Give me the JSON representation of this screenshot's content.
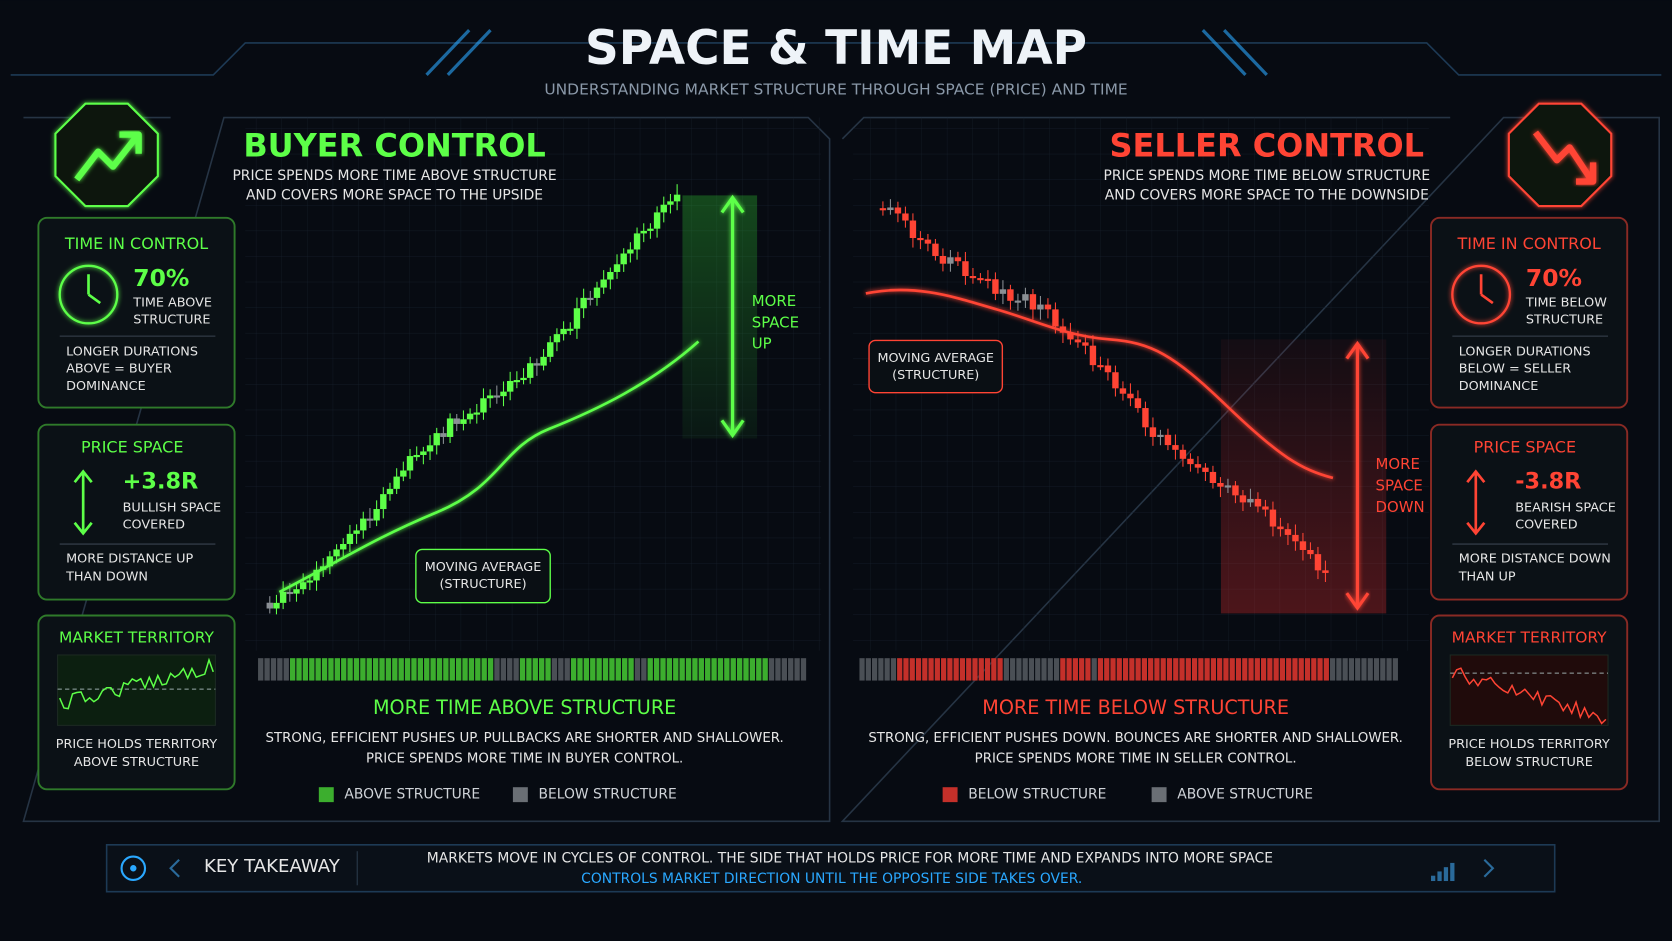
{
  "header": {
    "title": "SPACE & TIME MAP",
    "subtitle": "UNDERSTANDING MARKET STRUCTURE THROUGH SPACE (PRICE) AND TIME"
  },
  "buyer": {
    "title": "BUYER CONTROL",
    "description": [
      "PRICE SPENDS MORE TIME ABOVE STRUCTURE",
      "AND COVERS MORE SPACE TO THE UPSIDE"
    ],
    "time_card": {
      "label": "TIME IN CONTROL",
      "value": "70%",
      "detail": [
        "TIME ABOVE",
        "STRUCTURE"
      ],
      "note": [
        "LONGER DURATIONS",
        "ABOVE = BUYER",
        "DOMINANCE"
      ]
    },
    "price_card": {
      "label": "PRICE SPACE",
      "value": "+3.8R",
      "detail": [
        "BULLISH SPACE",
        "COVERED"
      ],
      "note": [
        "MORE DISTANCE UP",
        "THAN DOWN"
      ]
    },
    "territory_card": {
      "label": "MARKET TERRITORY",
      "note": [
        "PRICE HOLDS TERRITORY",
        "ABOVE STRUCTURE"
      ]
    },
    "callout": [
      "MOVING AVERAGE",
      "(STRUCTURE)"
    ],
    "space_label": [
      "MORE",
      "SPACE",
      "UP"
    ],
    "summary": {
      "heading": "MORE TIME ABOVE STRUCTURE",
      "text": [
        "STRONG, EFFICIENT PUSHES UP. PULLBACKS ARE SHORTER AND SHALLOWER.",
        "PRICE SPENDS MORE TIME IN BUYER CONTROL."
      ],
      "legend": [
        "ABOVE STRUCTURE",
        "BELOW STRUCTURE"
      ]
    }
  },
  "seller": {
    "title": "SELLER CONTROL",
    "description": [
      "PRICE SPENDS MORE TIME BELOW STRUCTURE",
      "AND COVERS MORE SPACE TO THE DOWNSIDE"
    ],
    "time_card": {
      "label": "TIME IN CONTROL",
      "value": "70%",
      "detail": [
        "TIME BELOW",
        "STRUCTURE"
      ],
      "note": [
        "LONGER DURATIONS",
        "BELOW = SELLER",
        "DOMINANCE"
      ]
    },
    "price_card": {
      "label": "PRICE SPACE",
      "value": "-3.8R",
      "detail": [
        "BEARISH SPACE",
        "COVERED"
      ],
      "note": [
        "MORE DISTANCE DOWN",
        "THAN UP"
      ]
    },
    "territory_card": {
      "label": "MARKET TERRITORY",
      "note": [
        "PRICE HOLDS TERRITORY",
        "BELOW STRUCTURE"
      ]
    },
    "callout": [
      "MOVING AVERAGE",
      "(STRUCTURE)"
    ],
    "space_label": [
      "MORE",
      "SPACE",
      "DOWN"
    ],
    "summary": {
      "heading": "MORE TIME BELOW STRUCTURE",
      "text": [
        "STRONG, EFFICIENT PUSHES DOWN. BOUNCES ARE SHORTER AND SHALLOWER.",
        "PRICE SPENDS MORE TIME IN SELLER CONTROL."
      ],
      "legend": [
        "BELOW STRUCTURE",
        "ABOVE STRUCTURE"
      ]
    }
  },
  "footer": {
    "label": "KEY TAKEAWAY",
    "text": [
      "MARKETS MOVE IN CYCLES OF CONTROL.  THE SIDE THAT HOLDS PRICE FOR MORE TIME AND EXPANDS INTO MORE SPACE",
      "CONTROLS MARKET DIRECTION UNTIL THE OPPOSITE SIDE TAKES OVER."
    ]
  }
}
